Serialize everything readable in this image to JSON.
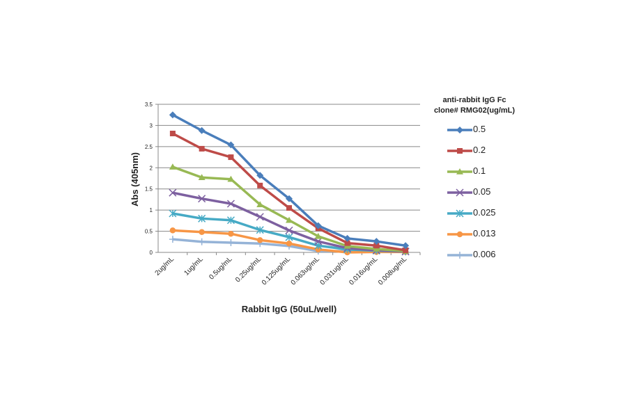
{
  "chart_data": {
    "type": "line",
    "title": "",
    "xlabel": "Rabbit IgG (50uL/well)",
    "ylabel": "Abs (405nm)",
    "ylim": [
      0,
      3.5
    ],
    "yticks": [
      "0",
      "0.5",
      "1",
      "1.5",
      "2",
      "2.5",
      "3",
      "3.5"
    ],
    "grid": true,
    "legend_title": [
      "anti-rabbit IgG Fc",
      "clone# RMG02(ug/mL)"
    ],
    "legend_position": "right",
    "categories": [
      "2ug/mL",
      "1ug/mL",
      "0.5ug/mL",
      "0.25ug/mL",
      "0.125ug/mL",
      "0.063ug/mL",
      "0.031ug/mL",
      "0.016ug/mL",
      "0.008ug/mL"
    ],
    "series": [
      {
        "name": "0.5",
        "color": "#4a7ebb",
        "marker": "diamond",
        "values": [
          3.25,
          2.88,
          2.54,
          1.82,
          1.27,
          0.63,
          0.33,
          0.26,
          0.16
        ]
      },
      {
        "name": "0.2",
        "color": "#be4b48",
        "marker": "square",
        "values": [
          2.81,
          2.45,
          2.25,
          1.58,
          1.05,
          0.57,
          0.22,
          0.16,
          0.05
        ]
      },
      {
        "name": "0.1",
        "color": "#98b954",
        "marker": "triangle",
        "values": [
          2.02,
          1.77,
          1.73,
          1.13,
          0.76,
          0.38,
          0.15,
          0.08,
          0.03
        ]
      },
      {
        "name": "0.05",
        "color": "#7d60a0",
        "marker": "x",
        "values": [
          1.41,
          1.27,
          1.15,
          0.84,
          0.52,
          0.26,
          0.1,
          0.05,
          0.02
        ]
      },
      {
        "name": "0.025",
        "color": "#46aac5",
        "marker": "star",
        "values": [
          0.92,
          0.8,
          0.76,
          0.53,
          0.36,
          0.16,
          0.07,
          0.04,
          0.02
        ]
      },
      {
        "name": "0.013",
        "color": "#f79646",
        "marker": "circle",
        "values": [
          0.52,
          0.48,
          0.44,
          0.29,
          0.21,
          0.07,
          0.0,
          0.01,
          0.01
        ]
      },
      {
        "name": "0.006",
        "color": "#95b3d7",
        "marker": "plus",
        "values": [
          0.31,
          0.25,
          0.23,
          0.21,
          0.15,
          0.03,
          0.03,
          0.02,
          0.01
        ]
      }
    ]
  }
}
